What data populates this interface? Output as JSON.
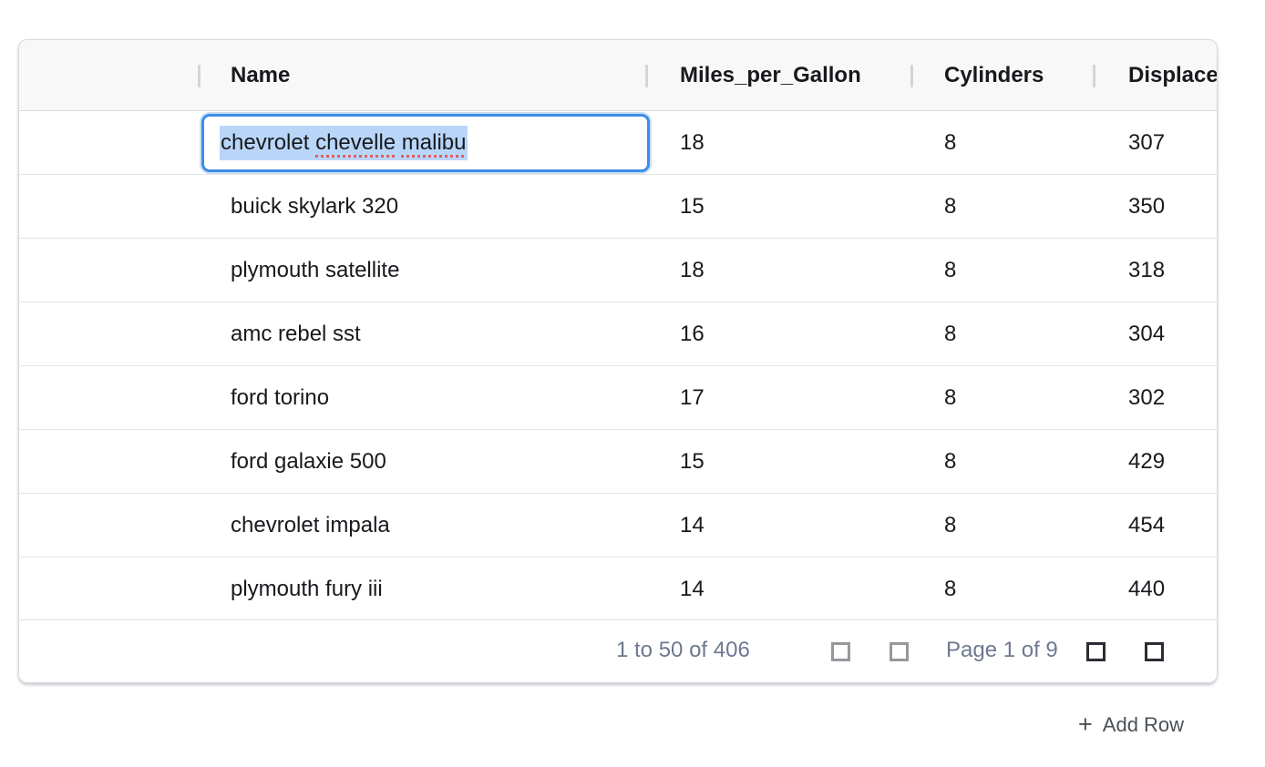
{
  "table": {
    "columns": [
      {
        "key": "drag",
        "label": ""
      },
      {
        "key": "name",
        "label": "Name"
      },
      {
        "key": "mpg",
        "label": "Miles_per_Gallon"
      },
      {
        "key": "cyl",
        "label": "Cylinders"
      },
      {
        "key": "disp",
        "label": "Displacement"
      }
    ],
    "rows": [
      {
        "name": "chevrolet chevelle malibu",
        "mpg": "18",
        "cyl": "8",
        "disp": "307",
        "editing": true
      },
      {
        "name": "buick skylark 320",
        "mpg": "15",
        "cyl": "8",
        "disp": "350"
      },
      {
        "name": "plymouth satellite",
        "mpg": "18",
        "cyl": "8",
        "disp": "318"
      },
      {
        "name": "amc rebel sst",
        "mpg": "16",
        "cyl": "8",
        "disp": "304"
      },
      {
        "name": "ford torino",
        "mpg": "17",
        "cyl": "8",
        "disp": "302"
      },
      {
        "name": "ford galaxie 500",
        "mpg": "15",
        "cyl": "8",
        "disp": "429"
      },
      {
        "name": "chevrolet impala",
        "mpg": "14",
        "cyl": "8",
        "disp": "454"
      },
      {
        "name": "plymouth fury iii",
        "mpg": "14",
        "cyl": "8",
        "disp": "440"
      }
    ]
  },
  "editor": {
    "value": "chevrolet chevelle malibu",
    "selection": "all",
    "segments": [
      {
        "text": "chevrolet ",
        "misspelled": false
      },
      {
        "text": "chevelle",
        "misspelled": true
      },
      {
        "text": " ",
        "misspelled": false
      },
      {
        "text": "malibu",
        "misspelled": true
      }
    ]
  },
  "pagination": {
    "range_label": "1 to 50 of 406",
    "page_label": "Page 1 of 9",
    "buttons": [
      {
        "name": "first-page",
        "icon": "empty-square",
        "enabled": false
      },
      {
        "name": "previous-page",
        "icon": "empty-square",
        "enabled": false
      },
      {
        "name": "next-page",
        "icon": "empty-square",
        "enabled": true
      },
      {
        "name": "last-page",
        "icon": "empty-square",
        "enabled": true
      }
    ]
  },
  "add_row": {
    "icon": "+",
    "label": "Add Row"
  },
  "colors": {
    "accent_blue": "#3d8de8",
    "selection_highlight": "#b9d6f8",
    "spellcheck_underline": "#e06060",
    "header_bg": "#f8f8f8",
    "footer_text": "#6e7890",
    "cell_text": "#17191d",
    "disabled_icon": "#97979c",
    "enabled_icon": "#2c2c34"
  }
}
